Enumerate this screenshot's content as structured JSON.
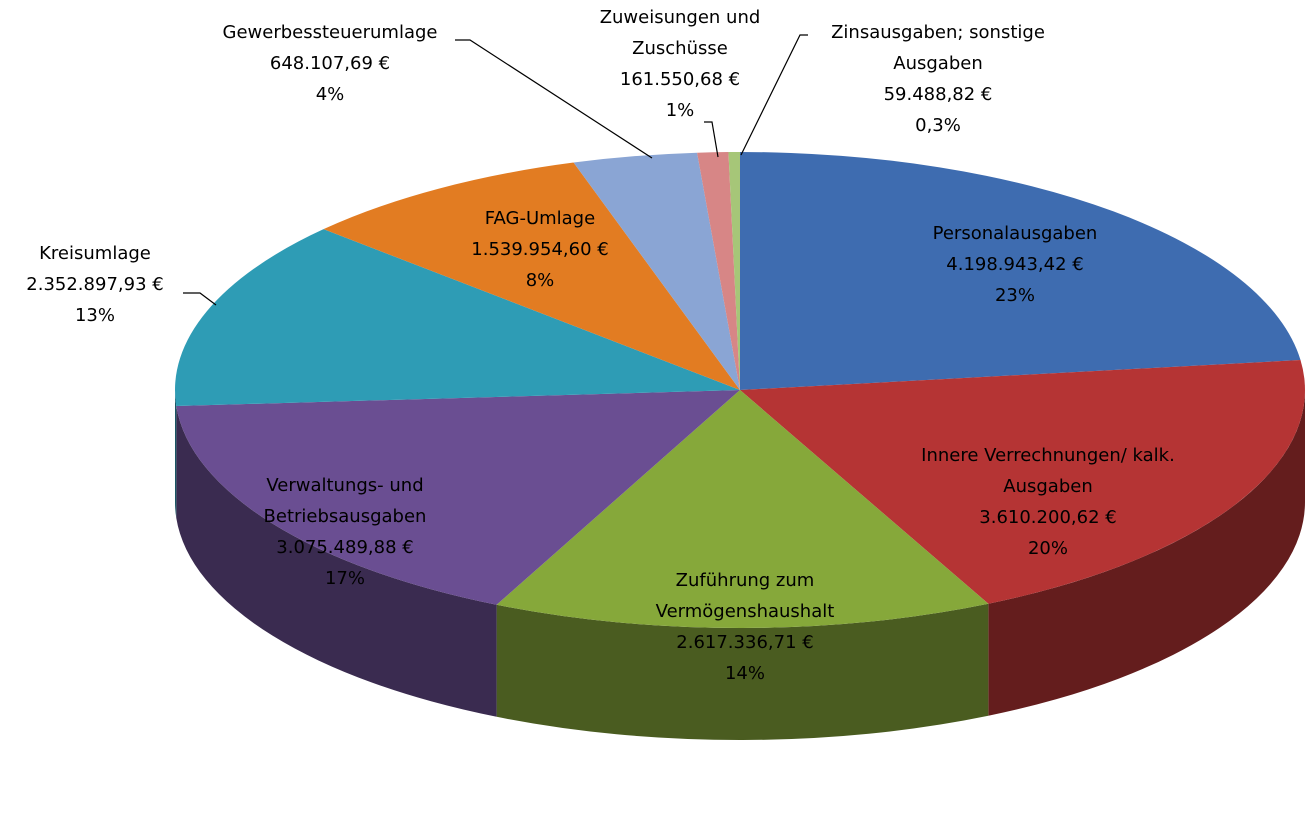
{
  "chart_data": {
    "type": "pie3d",
    "categories": [
      "Personalausgaben",
      "Innere Verrechnungen/ kalk. Ausgaben",
      "Zuführung zum Vermögenshaushalt",
      "Verwaltungs- und Betriebsausgaben",
      "Kreisumlage",
      "FAG-Umlage",
      "Gewerbessteuerumlage",
      "Zuweisungen und Zuschüsse",
      "Zinsausgaben; sonstige Ausgaben"
    ],
    "values": [
      4198943.42,
      3610200.62,
      2617336.71,
      3075489.88,
      2352897.93,
      1539954.6,
      648107.69,
      161550.68,
      59488.82
    ],
    "value_labels": [
      "4.198.943,42 €",
      "3.610.200,62 €",
      "2.617.336,71 €",
      "3.075.489,88 €",
      "2.352.897,93 €",
      "1.539.954,60 €",
      "648.107,69 €",
      "161.550,68 €",
      "59.488,82 €"
    ],
    "percentages": [
      23,
      20,
      14,
      17,
      13,
      8,
      4,
      1,
      0.3
    ],
    "percentage_labels": [
      "23%",
      "20%",
      "14%",
      "17%",
      "13%",
      "8%",
      "4%",
      "1%",
      "0,3%"
    ],
    "colors": [
      "#3e6cb0",
      "#b53434",
      "#86a83a",
      "#6a4e92",
      "#2e9cb5",
      "#e27c22",
      "#8aa5d4",
      "#d78686",
      "#a6c678"
    ]
  }
}
